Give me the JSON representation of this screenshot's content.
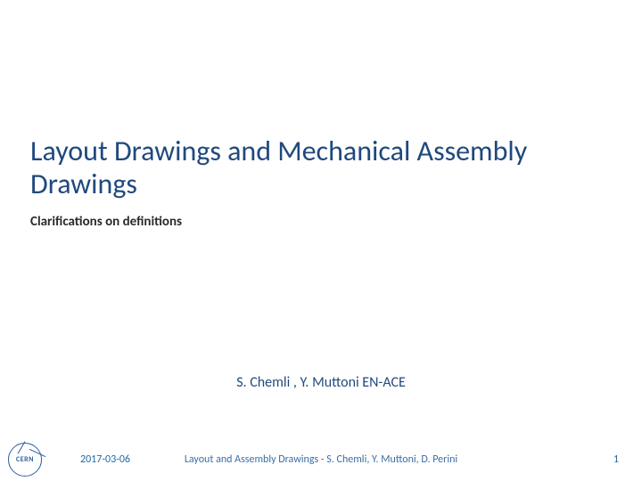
{
  "colors": {
    "title": "#1f497d",
    "subtitle": "#2a2a2a",
    "authors": "#1f497d",
    "footer_text": "#1f6aa5",
    "footer_center": "#3a6ea8",
    "logo": "#2a5f9e",
    "background": "#ffffff"
  },
  "typography": {
    "title_fontsize": 32,
    "subtitle_fontsize": 15,
    "authors_fontsize": 16,
    "footer_fontsize": 12
  },
  "title": "Layout Drawings and Mechanical Assembly Drawings",
  "subtitle": "Clarifications on definitions",
  "authors": "S. Chemli , Y. Muttoni EN-ACE",
  "footer": {
    "logo_text": "CERN",
    "date": "2017-03-06",
    "center": "Layout and Assembly Drawings - S. Chemli, Y. Muttoni, D. Perini",
    "page": "1"
  }
}
